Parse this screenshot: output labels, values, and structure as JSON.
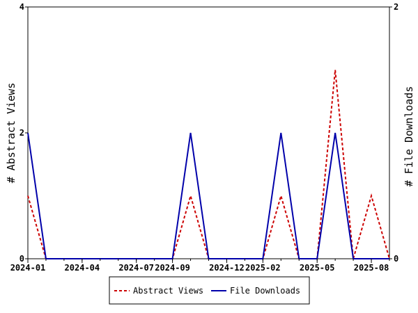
{
  "chart_data": {
    "type": "line",
    "ylabel_left": "# Abstract Views",
    "ylabel_right": "# File Downloads",
    "ylim_left": [
      0,
      4
    ],
    "ylim_right": [
      0,
      2
    ],
    "yticks_left": [
      "0",
      "2",
      "4"
    ],
    "yticks_right": [
      "0",
      "2"
    ],
    "x": [
      "2024-01",
      "2024-02",
      "2024-03",
      "2024-04",
      "2024-05",
      "2024-06",
      "2024-07",
      "2024-08",
      "2024-09",
      "2024-10",
      "2024-11",
      "2024-12",
      "2025-01",
      "2025-02",
      "2025-03",
      "2025-04",
      "2025-05",
      "2025-06",
      "2025-07",
      "2025-08",
      "2025-09"
    ],
    "xticks": [
      "2024-01",
      "2024-04",
      "2024-07",
      "2024-09",
      "2024-12",
      "2025-02",
      "2025-05",
      "2025-08"
    ],
    "series": [
      {
        "name": "Abstract Views",
        "axis": "left",
        "color": "#cc0000",
        "style": "dashed",
        "values": [
          1,
          0,
          0,
          0,
          0,
          0,
          0,
          0,
          0,
          1,
          0,
          0,
          0,
          0,
          1,
          0,
          0,
          3,
          0,
          1,
          0
        ]
      },
      {
        "name": "File Downloads",
        "axis": "right",
        "color": "#0000aa",
        "style": "solid",
        "values": [
          1,
          0,
          0,
          0,
          0,
          0,
          0,
          0,
          0,
          1,
          0,
          0,
          0,
          0,
          1,
          0,
          0,
          1,
          0,
          0,
          0
        ]
      }
    ],
    "grid": false,
    "legend": "bottom"
  }
}
